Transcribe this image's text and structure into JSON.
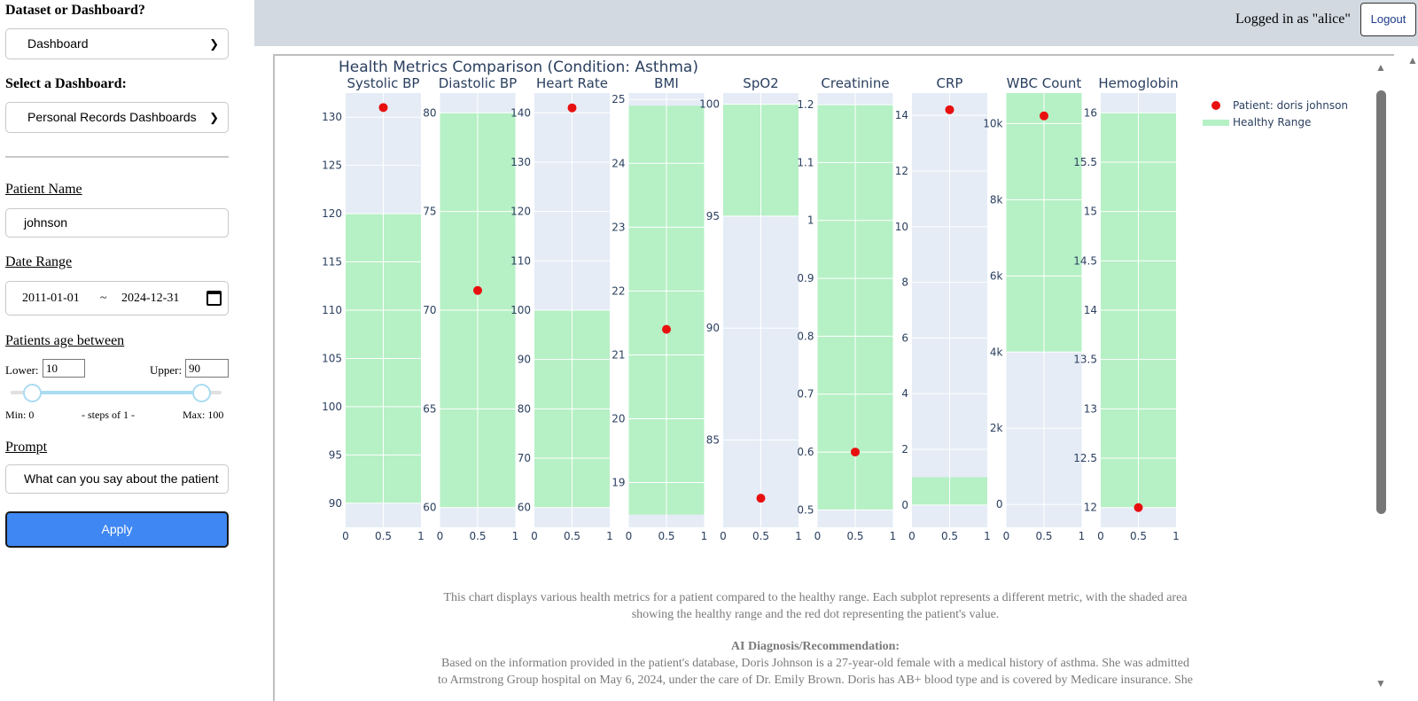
{
  "sidebar": {
    "dataset_title": "Dataset or Dashboard?",
    "dataset_value": "Dashboard",
    "dashboard_title": "Select a Dashboard:",
    "dashboard_value": "Personal Records Dashboards",
    "patient_name_label": "Patient Name",
    "patient_name_value": "johnson",
    "date_range_label": "Date Range",
    "date_start": "2011-01-01",
    "date_sep": "~",
    "date_end": "2024-12-31",
    "age_label": "Patients age between",
    "lower_label": "Lower:",
    "lower_value": "10",
    "upper_label": "Upper:",
    "upper_value": "90",
    "min_label": "Min: 0",
    "steps_label": "- steps of 1 -",
    "max_label": "Max: 100",
    "slider_range": [
      10,
      90
    ],
    "prompt_label": "Prompt",
    "prompt_value": "What can you say about the patient",
    "apply_label": "Apply"
  },
  "header": {
    "logged_in_text": "Logged in as \"alice\"",
    "logout_label": "Logout"
  },
  "chart_data": {
    "type": "scatter",
    "title": "Health Metrics Comparison (Condition: Asthma)",
    "legend": {
      "position": "top-right",
      "entries": [
        "Patient: doris johnson",
        "Healthy Range"
      ]
    },
    "colors": {
      "patient": "#e80f0f",
      "healthy": "#b6f0c5",
      "plot_bg": "#e5ecf6"
    },
    "x_ticks": [
      "0",
      "0.5",
      "1"
    ],
    "subplots": [
      {
        "name": "Systolic BP",
        "ylim": [
          87.5,
          132.5
        ],
        "ticks": [
          90,
          95,
          100,
          105,
          110,
          115,
          120,
          125,
          130
        ],
        "tick_labels": [
          "90",
          "95",
          "100",
          "105",
          "110",
          "115",
          "120",
          "125",
          "130"
        ],
        "healthy": [
          90,
          120
        ],
        "patient": 131
      },
      {
        "name": "Diastolic BP",
        "ylim": [
          59,
          81
        ],
        "ticks": [
          60,
          65,
          70,
          75,
          80
        ],
        "tick_labels": [
          "60",
          "65",
          "70",
          "75",
          "80"
        ],
        "healthy": [
          60,
          80
        ],
        "patient": 71
      },
      {
        "name": "Heart Rate",
        "ylim": [
          56,
          144
        ],
        "ticks": [
          60,
          70,
          80,
          90,
          100,
          110,
          120,
          130,
          140
        ],
        "tick_labels": [
          "60",
          "70",
          "80",
          "90",
          "100",
          "110",
          "120",
          "130",
          "140"
        ],
        "healthy": [
          60,
          100
        ],
        "patient": 141
      },
      {
        "name": "BMI",
        "ylim": [
          18.3,
          25.1
        ],
        "ticks": [
          19,
          20,
          21,
          22,
          23,
          24,
          25
        ],
        "tick_labels": [
          "19",
          "20",
          "21",
          "22",
          "23",
          "24",
          "25"
        ],
        "healthy": [
          18.5,
          24.9
        ],
        "patient": 21.4
      },
      {
        "name": "SpO2",
        "ylim": [
          81.1,
          100.5
        ],
        "ticks": [
          85,
          90,
          95,
          100
        ],
        "tick_labels": [
          "85",
          "90",
          "95",
          "100"
        ],
        "healthy": [
          95,
          100
        ],
        "patient": 82.4
      },
      {
        "name": "Creatinine",
        "ylim": [
          0.47,
          1.22
        ],
        "ticks": [
          0.5,
          0.6,
          0.7,
          0.8,
          0.9,
          1.0,
          1.1,
          1.2
        ],
        "tick_labels": [
          "0.5",
          "0.6",
          "0.7",
          "0.8",
          "0.9",
          "1",
          "1.1",
          "1.2"
        ],
        "healthy": [
          0.5,
          1.2
        ],
        "patient": 0.6
      },
      {
        "name": "CRP",
        "ylim": [
          -0.8,
          14.8
        ],
        "ticks": [
          0,
          2,
          4,
          6,
          8,
          10,
          12,
          14
        ],
        "tick_labels": [
          "0",
          "2",
          "4",
          "6",
          "8",
          "10",
          "12",
          "14"
        ],
        "healthy": [
          0,
          1
        ],
        "patient": 14.2
      },
      {
        "name": "WBC Count",
        "ylim": [
          -600,
          10800
        ],
        "ticks": [
          0,
          2000,
          4000,
          6000,
          8000,
          10000
        ],
        "tick_labels": [
          "0",
          "2k",
          "4k",
          "6k",
          "8k",
          "10k"
        ],
        "healthy": [
          4000,
          11000
        ],
        "patient": 10200
      },
      {
        "name": "Hemoglobin",
        "ylim": [
          11.8,
          16.2
        ],
        "ticks": [
          12,
          12.5,
          13,
          13.5,
          14,
          14.5,
          15,
          15.5,
          16
        ],
        "tick_labels": [
          "12",
          "12.5",
          "13",
          "13.5",
          "14",
          "14.5",
          "15",
          "15.5",
          "16"
        ],
        "healthy": [
          12,
          16
        ],
        "patient": 12
      }
    ]
  },
  "caption": {
    "description_line1": "This chart displays various health metrics for a patient compared to the healthy range. Each subplot represents a different metric, with the shaded area",
    "description_line2": "showing the healthy range and the red dot representing the patient's value.",
    "ai_title": "AI Diagnosis/Recommendation:",
    "ai_line1": "Based on the information provided in the patient's database, Doris Johnson is a 27-year-old female with a medical history of asthma. She was admitted",
    "ai_line2": "to Armstrong Group hospital on May 6, 2024, under the care of Dr. Emily Brown. Doris has AB+ blood type and is covered by Medicare insurance. She"
  }
}
